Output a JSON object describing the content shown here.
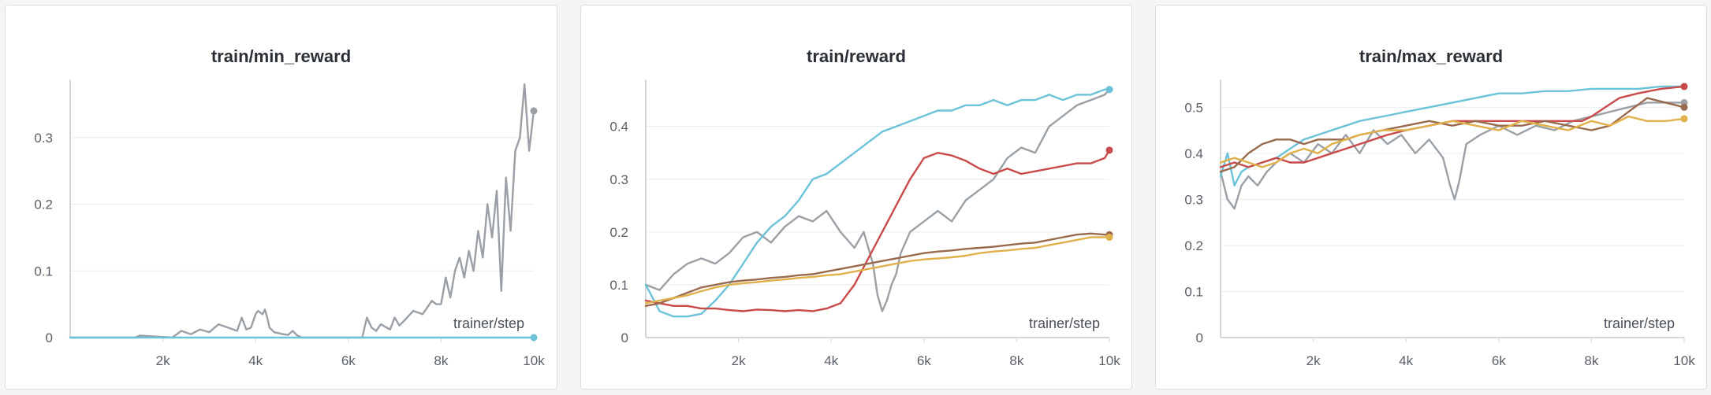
{
  "colors": {
    "gray": "#9aa0a6",
    "cyan": "#6cc2d8",
    "red": "#c94a4a",
    "brown": "#9a6a4e",
    "yellow": "#e0b04a",
    "grid": "#ececee",
    "axis": "#d5d6d9"
  },
  "chart_data": [
    {
      "type": "line",
      "title": "train/min_reward",
      "xlabel": "trainer/step",
      "ylabel": "",
      "xlim": [
        0,
        10000
      ],
      "ylim": [
        0,
        0.38
      ],
      "xticks": [
        2000,
        4000,
        6000,
        8000,
        10000
      ],
      "xtick_labels": [
        "2k",
        "4k",
        "6k",
        "8k",
        "10k"
      ],
      "yticks": [
        0,
        0.1,
        0.2,
        0.3
      ],
      "ytick_labels": [
        "0",
        "0.1",
        "0.2",
        "0.3"
      ],
      "grid": true,
      "series": [
        {
          "color": "gray",
          "x": [
            0,
            1400,
            1500,
            2200,
            2400,
            2600,
            2800,
            3000,
            3200,
            3400,
            3600,
            3700,
            3800,
            3900,
            4000,
            4050,
            4150,
            4200,
            4250,
            4300,
            4400,
            4600,
            4700,
            4800,
            4900,
            5000,
            5500,
            6300,
            6400,
            6500,
            6600,
            6700,
            6900,
            7000,
            7100,
            7200,
            7400,
            7600,
            7800,
            7900,
            8000,
            8100,
            8200,
            8300,
            8400,
            8500,
            8600,
            8700,
            8800,
            8900,
            9000,
            9100,
            9200,
            9300,
            9400,
            9500,
            9600,
            9700,
            9800,
            9900,
            10000
          ],
          "y": [
            0,
            0,
            0.003,
            0,
            0.01,
            0.005,
            0.012,
            0.008,
            0.02,
            0.015,
            0.01,
            0.03,
            0.012,
            0.015,
            0.035,
            0.04,
            0.035,
            0.042,
            0.03,
            0.015,
            0.008,
            0.005,
            0.004,
            0.01,
            0.003,
            0,
            0,
            0,
            0.03,
            0.015,
            0.01,
            0.02,
            0.012,
            0.03,
            0.018,
            0.025,
            0.04,
            0.035,
            0.055,
            0.05,
            0.05,
            0.09,
            0.06,
            0.1,
            0.12,
            0.09,
            0.13,
            0.1,
            0.16,
            0.12,
            0.2,
            0.15,
            0.22,
            0.07,
            0.24,
            0.16,
            0.28,
            0.3,
            0.38,
            0.28,
            0.34
          ]
        },
        {
          "color": "cyan",
          "x": [
            0,
            10000
          ],
          "y": [
            0,
            0
          ]
        }
      ]
    },
    {
      "type": "line",
      "title": "train/reward",
      "xlabel": "trainer/step",
      "ylabel": "",
      "xlim": [
        0,
        10000
      ],
      "ylim": [
        0,
        0.48
      ],
      "xticks": [
        2000,
        4000,
        6000,
        8000,
        10000
      ],
      "xtick_labels": [
        "2k",
        "4k",
        "6k",
        "8k",
        "10k"
      ],
      "yticks": [
        0,
        0.1,
        0.2,
        0.3,
        0.4
      ],
      "ytick_labels": [
        "0",
        "0.1",
        "0.2",
        "0.3",
        "0.4"
      ],
      "grid": true,
      "series": [
        {
          "color": "gray",
          "x": [
            0,
            300,
            600,
            900,
            1200,
            1500,
            1800,
            2100,
            2400,
            2700,
            3000,
            3300,
            3600,
            3900,
            4200,
            4500,
            4700,
            4900,
            5000,
            5100,
            5200,
            5300,
            5400,
            5500,
            5700,
            6000,
            6300,
            6600,
            6900,
            7200,
            7500,
            7800,
            8100,
            8400,
            8700,
            9000,
            9300,
            9600,
            9900,
            10000
          ],
          "y": [
            0.1,
            0.09,
            0.12,
            0.14,
            0.15,
            0.14,
            0.16,
            0.19,
            0.2,
            0.18,
            0.21,
            0.23,
            0.22,
            0.24,
            0.2,
            0.17,
            0.2,
            0.14,
            0.08,
            0.05,
            0.07,
            0.1,
            0.12,
            0.16,
            0.2,
            0.22,
            0.24,
            0.22,
            0.26,
            0.28,
            0.3,
            0.34,
            0.36,
            0.35,
            0.4,
            0.42,
            0.44,
            0.45,
            0.46,
            0.47
          ]
        },
        {
          "color": "cyan",
          "x": [
            0,
            300,
            600,
            900,
            1200,
            1500,
            1800,
            2100,
            2400,
            2700,
            3000,
            3300,
            3600,
            3900,
            4200,
            4500,
            4800,
            5100,
            5400,
            5700,
            6000,
            6300,
            6600,
            6900,
            7200,
            7500,
            7800,
            8100,
            8400,
            8700,
            9000,
            9300,
            9600,
            9900,
            10000
          ],
          "y": [
            0.1,
            0.05,
            0.04,
            0.04,
            0.045,
            0.07,
            0.1,
            0.14,
            0.18,
            0.21,
            0.23,
            0.26,
            0.3,
            0.31,
            0.33,
            0.35,
            0.37,
            0.39,
            0.4,
            0.41,
            0.42,
            0.43,
            0.43,
            0.44,
            0.44,
            0.45,
            0.44,
            0.45,
            0.45,
            0.46,
            0.45,
            0.46,
            0.46,
            0.47,
            0.47
          ]
        },
        {
          "color": "red",
          "x": [
            0,
            300,
            600,
            900,
            1200,
            1500,
            1800,
            2100,
            2400,
            2700,
            3000,
            3300,
            3600,
            3900,
            4200,
            4500,
            4800,
            5100,
            5400,
            5700,
            6000,
            6300,
            6600,
            6900,
            7200,
            7500,
            7800,
            8100,
            8400,
            8700,
            9000,
            9300,
            9600,
            9900,
            10000
          ],
          "y": [
            0.07,
            0.065,
            0.06,
            0.06,
            0.055,
            0.055,
            0.052,
            0.05,
            0.053,
            0.052,
            0.05,
            0.052,
            0.05,
            0.055,
            0.065,
            0.1,
            0.15,
            0.2,
            0.25,
            0.3,
            0.34,
            0.35,
            0.345,
            0.335,
            0.32,
            0.31,
            0.32,
            0.31,
            0.315,
            0.32,
            0.325,
            0.33,
            0.33,
            0.34,
            0.355
          ]
        },
        {
          "color": "brown",
          "x": [
            0,
            300,
            600,
            900,
            1200,
            1500,
            1800,
            2100,
            2400,
            2700,
            3000,
            3300,
            3600,
            3900,
            4200,
            4500,
            4800,
            5100,
            5400,
            5700,
            6000,
            6300,
            6600,
            6900,
            7200,
            7500,
            7800,
            8100,
            8400,
            8700,
            9000,
            9300,
            9600,
            9900,
            10000
          ],
          "y": [
            0.06,
            0.065,
            0.075,
            0.085,
            0.095,
            0.1,
            0.105,
            0.108,
            0.11,
            0.113,
            0.115,
            0.118,
            0.12,
            0.125,
            0.13,
            0.135,
            0.14,
            0.145,
            0.15,
            0.155,
            0.16,
            0.163,
            0.165,
            0.168,
            0.17,
            0.172,
            0.175,
            0.178,
            0.18,
            0.185,
            0.19,
            0.195,
            0.197,
            0.195,
            0.195
          ]
        },
        {
          "color": "yellow",
          "x": [
            0,
            300,
            600,
            900,
            1200,
            1500,
            1800,
            2100,
            2400,
            2700,
            3000,
            3300,
            3600,
            3900,
            4200,
            4500,
            4800,
            5100,
            5400,
            5700,
            6000,
            6300,
            6600,
            6900,
            7200,
            7500,
            7800,
            8100,
            8400,
            8700,
            9000,
            9300,
            9600,
            9900,
            10000
          ],
          "y": [
            0.065,
            0.07,
            0.075,
            0.08,
            0.088,
            0.095,
            0.1,
            0.103,
            0.105,
            0.108,
            0.11,
            0.113,
            0.115,
            0.118,
            0.12,
            0.125,
            0.13,
            0.135,
            0.14,
            0.145,
            0.148,
            0.15,
            0.152,
            0.155,
            0.16,
            0.163,
            0.165,
            0.168,
            0.17,
            0.175,
            0.18,
            0.185,
            0.19,
            0.19,
            0.19
          ]
        }
      ]
    },
    {
      "type": "line",
      "title": "train/max_reward",
      "xlabel": "trainer/step",
      "ylabel": "",
      "xlim": [
        0,
        10000
      ],
      "ylim": [
        0,
        0.55
      ],
      "xticks": [
        2000,
        4000,
        6000,
        8000,
        10000
      ],
      "xtick_labels": [
        "2k",
        "4k",
        "6k",
        "8k",
        "10k"
      ],
      "yticks": [
        0,
        0.1,
        0.2,
        0.3,
        0.4,
        0.5
      ],
      "ytick_labels": [
        "0",
        "0.1",
        "0.2",
        "0.3",
        "0.4",
        "0.5"
      ],
      "grid": true,
      "series": [
        {
          "color": "gray",
          "x": [
            0,
            150,
            300,
            450,
            600,
            800,
            1000,
            1200,
            1500,
            1800,
            2100,
            2400,
            2700,
            3000,
            3300,
            3600,
            3900,
            4200,
            4500,
            4800,
            4950,
            5050,
            5150,
            5300,
            5600,
            6000,
            6400,
            6800,
            7200,
            7600,
            8000,
            8400,
            8800,
            9200,
            9600,
            10000
          ],
          "y": [
            0.36,
            0.3,
            0.28,
            0.33,
            0.35,
            0.33,
            0.36,
            0.38,
            0.4,
            0.38,
            0.42,
            0.4,
            0.44,
            0.4,
            0.45,
            0.42,
            0.44,
            0.4,
            0.43,
            0.39,
            0.33,
            0.3,
            0.34,
            0.42,
            0.44,
            0.46,
            0.44,
            0.46,
            0.45,
            0.47,
            0.48,
            0.49,
            0.5,
            0.51,
            0.51,
            0.51
          ]
        },
        {
          "color": "cyan",
          "x": [
            0,
            150,
            300,
            450,
            600,
            900,
            1200,
            1500,
            1800,
            2100,
            2400,
            2700,
            3000,
            3500,
            4000,
            4500,
            5000,
            5500,
            6000,
            6500,
            7000,
            7500,
            8000,
            8500,
            9000,
            9500,
            10000
          ],
          "y": [
            0.35,
            0.4,
            0.33,
            0.36,
            0.37,
            0.38,
            0.39,
            0.41,
            0.43,
            0.44,
            0.45,
            0.46,
            0.47,
            0.48,
            0.49,
            0.5,
            0.51,
            0.52,
            0.53,
            0.53,
            0.535,
            0.535,
            0.54,
            0.54,
            0.54,
            0.545,
            0.545
          ]
        },
        {
          "color": "red",
          "x": [
            0,
            300,
            600,
            900,
            1200,
            1500,
            1800,
            2100,
            2400,
            2700,
            3000,
            3300,
            3600,
            4000,
            4500,
            5000,
            5500,
            6000,
            6500,
            7000,
            7500,
            7800,
            8000,
            8300,
            8600,
            9000,
            9500,
            10000
          ],
          "y": [
            0.37,
            0.38,
            0.37,
            0.38,
            0.39,
            0.38,
            0.38,
            0.39,
            0.4,
            0.41,
            0.42,
            0.43,
            0.44,
            0.45,
            0.46,
            0.47,
            0.47,
            0.47,
            0.47,
            0.47,
            0.47,
            0.47,
            0.48,
            0.5,
            0.52,
            0.53,
            0.54,
            0.545
          ]
        },
        {
          "color": "brown",
          "x": [
            0,
            300,
            600,
            900,
            1200,
            1500,
            1800,
            2100,
            2400,
            2700,
            3000,
            3500,
            4000,
            4500,
            5000,
            5500,
            6000,
            6500,
            7000,
            7500,
            8000,
            8400,
            8800,
            9200,
            9600,
            10000
          ],
          "y": [
            0.36,
            0.37,
            0.4,
            0.42,
            0.43,
            0.43,
            0.42,
            0.43,
            0.43,
            0.43,
            0.44,
            0.45,
            0.46,
            0.47,
            0.46,
            0.47,
            0.46,
            0.46,
            0.47,
            0.46,
            0.45,
            0.46,
            0.49,
            0.52,
            0.51,
            0.5
          ]
        },
        {
          "color": "yellow",
          "x": [
            0,
            300,
            600,
            900,
            1200,
            1500,
            1800,
            2100,
            2400,
            2700,
            3000,
            3500,
            4000,
            4500,
            5000,
            5500,
            6000,
            6500,
            7000,
            7500,
            8000,
            8400,
            8800,
            9200,
            9600,
            10000
          ],
          "y": [
            0.38,
            0.39,
            0.38,
            0.37,
            0.38,
            0.4,
            0.41,
            0.4,
            0.42,
            0.43,
            0.44,
            0.45,
            0.45,
            0.46,
            0.47,
            0.46,
            0.45,
            0.47,
            0.46,
            0.45,
            0.47,
            0.46,
            0.48,
            0.47,
            0.47,
            0.475
          ]
        }
      ]
    }
  ]
}
